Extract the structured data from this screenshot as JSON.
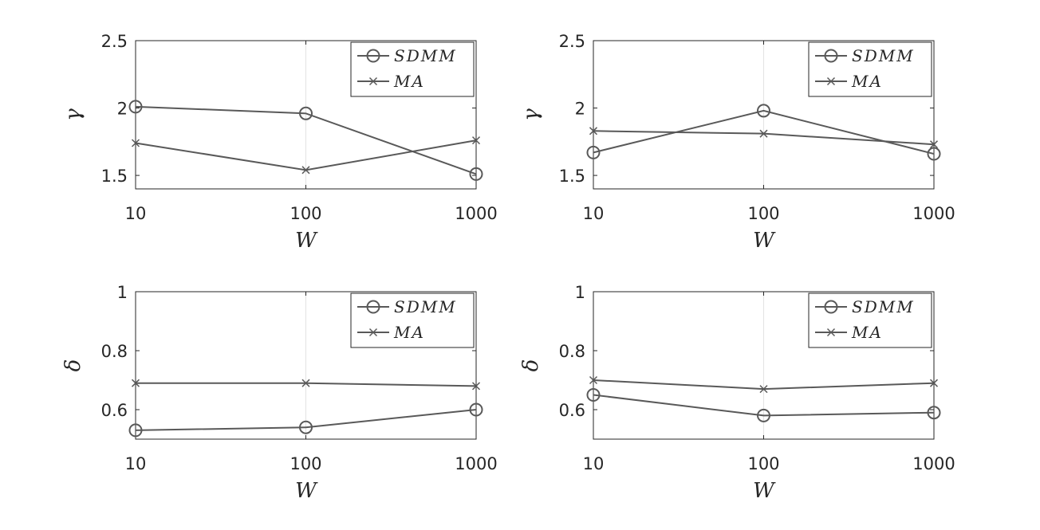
{
  "chart_data": [
    {
      "type": "line",
      "x": [
        10,
        100,
        1000
      ],
      "x_scale": "log",
      "x_tick_labels": [
        "10",
        "100",
        "1000"
      ],
      "xlabel": "W",
      "ylabel": "γ",
      "ylim": [
        1.4,
        2.5
      ],
      "y_ticks": [
        1.5,
        2,
        2.5
      ],
      "y_tick_labels": [
        "1.5",
        "2",
        "2.5"
      ],
      "grid": "x-only",
      "legend_position": "top-right",
      "series": [
        {
          "name": "SDMM",
          "marker": "circle",
          "values": [
            2.01,
            1.96,
            1.51
          ]
        },
        {
          "name": "MA",
          "marker": "x",
          "values": [
            1.74,
            1.54,
            1.76
          ]
        }
      ]
    },
    {
      "type": "line",
      "x": [
        10,
        100,
        1000
      ],
      "x_scale": "log",
      "x_tick_labels": [
        "10",
        "100",
        "1000"
      ],
      "xlabel": "W",
      "ylabel": "γ",
      "ylim": [
        1.4,
        2.5
      ],
      "y_ticks": [
        1.5,
        2,
        2.5
      ],
      "y_tick_labels": [
        "1.5",
        "2",
        "2.5"
      ],
      "grid": "x-only",
      "legend_position": "top-right",
      "series": [
        {
          "name": "SDMM",
          "marker": "circle",
          "values": [
            1.67,
            1.98,
            1.66
          ]
        },
        {
          "name": "MA",
          "marker": "x",
          "values": [
            1.83,
            1.81,
            1.73
          ]
        }
      ]
    },
    {
      "type": "line",
      "x": [
        10,
        100,
        1000
      ],
      "x_scale": "log",
      "x_tick_labels": [
        "10",
        "100",
        "1000"
      ],
      "xlabel": "W",
      "ylabel": "δ",
      "ylim": [
        0.5,
        1.0
      ],
      "y_ticks": [
        0.6,
        0.8,
        1
      ],
      "y_tick_labels": [
        "0.6",
        "0.8",
        "1"
      ],
      "grid": "x-only",
      "legend_position": "top-right",
      "series": [
        {
          "name": "SDMM",
          "marker": "circle",
          "values": [
            0.53,
            0.54,
            0.6
          ]
        },
        {
          "name": "MA",
          "marker": "x",
          "values": [
            0.69,
            0.69,
            0.68
          ]
        }
      ]
    },
    {
      "type": "line",
      "x": [
        10,
        100,
        1000
      ],
      "x_scale": "log",
      "x_tick_labels": [
        "10",
        "100",
        "1000"
      ],
      "xlabel": "W",
      "ylabel": "δ",
      "ylim": [
        0.5,
        1.0
      ],
      "y_ticks": [
        0.6,
        0.8,
        1
      ],
      "y_tick_labels": [
        "0.6",
        "0.8",
        "1"
      ],
      "grid": "x-only",
      "legend_position": "top-right",
      "series": [
        {
          "name": "SDMM",
          "marker": "circle",
          "values": [
            0.65,
            0.58,
            0.59
          ]
        },
        {
          "name": "MA",
          "marker": "x",
          "values": [
            0.7,
            0.67,
            0.69
          ]
        }
      ]
    }
  ],
  "colors": {
    "series_line": "#595959",
    "axes": "#262626",
    "grid": "#e3e3e3"
  }
}
